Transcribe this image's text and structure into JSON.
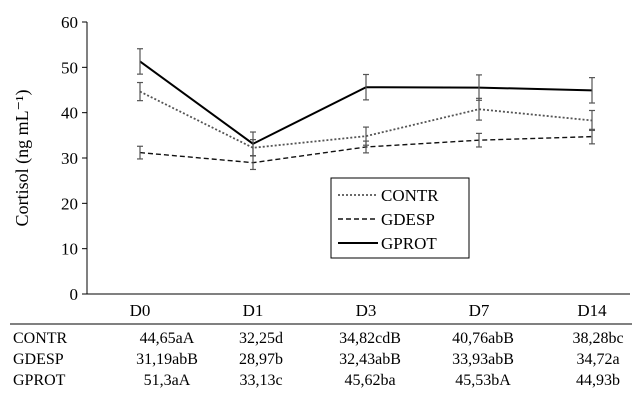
{
  "chart_data": {
    "type": "line",
    "title": "",
    "xlabel": "",
    "ylabel": "Cortisol (ng mL⁻¹)",
    "ylim": [
      0,
      60
    ],
    "yticks": [
      "0",
      "10",
      "20",
      "30",
      "40",
      "50",
      "60"
    ],
    "categories": [
      "D0",
      "D1",
      "D3",
      "D7",
      "D14"
    ],
    "grid": false,
    "legend_position": "center-right",
    "series": [
      {
        "name": "CONTR",
        "style": "dotted",
        "color": "#555555",
        "values": [
          44.65,
          32.25,
          34.82,
          40.76,
          38.28
        ],
        "errors": [
          2.0,
          1.8,
          2.0,
          2.4,
          2.2
        ]
      },
      {
        "name": "GDESP",
        "style": "dashed",
        "color": "#111111",
        "values": [
          31.19,
          28.97,
          32.43,
          33.93,
          34.72
        ],
        "errors": [
          1.4,
          1.5,
          1.3,
          1.5,
          1.6
        ]
      },
      {
        "name": "GPROT",
        "style": "solid",
        "color": "#000000",
        "values": [
          51.3,
          33.13,
          45.62,
          45.53,
          44.93
        ],
        "errors": [
          2.8,
          2.6,
          2.8,
          2.8,
          2.8
        ]
      }
    ]
  },
  "table": {
    "rows": [
      {
        "label": "CONTR",
        "cells": [
          "44,65aA",
          "32,25d",
          "34,82cdB",
          "40,76abB",
          "38,28bc"
        ]
      },
      {
        "label": "GDESP",
        "cells": [
          "31,19abB",
          "28,97b",
          "32,43abB",
          "33,93abB",
          "34,72a"
        ]
      },
      {
        "label": "GPROT",
        "cells": [
          "51,3aA",
          "33,13c",
          "45,62ba",
          "45,53bA",
          "44,93b"
        ]
      }
    ]
  }
}
